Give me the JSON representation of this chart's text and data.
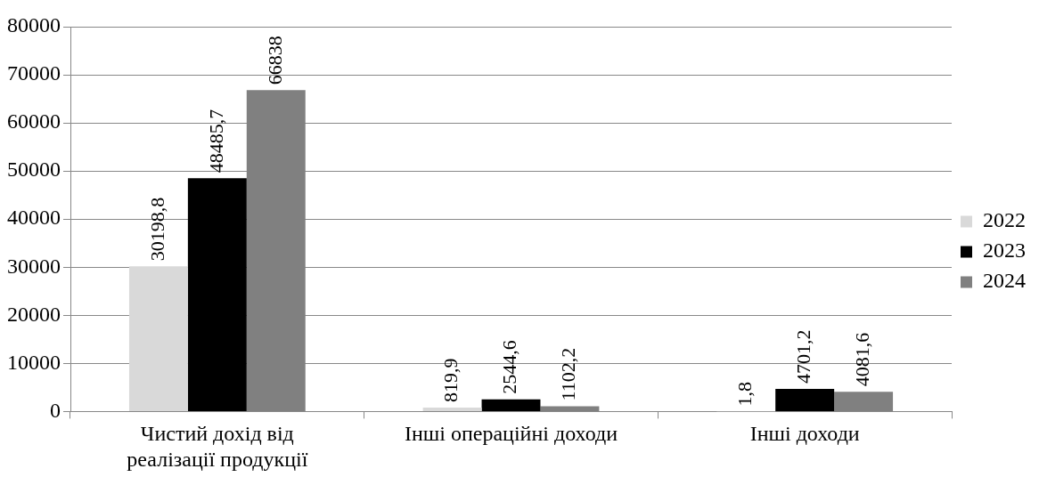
{
  "chart_data": {
    "type": "bar",
    "categories": [
      "Чистий дохід від реалізації продукції",
      "Інші операційні доходи",
      "Інші доходи"
    ],
    "series": [
      {
        "name": "2022",
        "color": "#d9d9d9",
        "values": [
          30198.8,
          819.9,
          1.8
        ],
        "value_labels": [
          "30198,8",
          "819,9",
          "1,8"
        ]
      },
      {
        "name": "2023",
        "color": "#000000",
        "values": [
          48485.7,
          2544.6,
          4701.2
        ],
        "value_labels": [
          "48485,7",
          "2544,6",
          "4701,2"
        ]
      },
      {
        "name": "2024",
        "color": "#808080",
        "values": [
          66838,
          1102.2,
          4081.6
        ],
        "value_labels": [
          "66838",
          "1102,2",
          "4081,6"
        ]
      }
    ],
    "ylim": [
      0,
      80000
    ],
    "yticks": [
      0,
      10000,
      20000,
      30000,
      40000,
      50000,
      60000,
      70000,
      80000
    ],
    "grid": "y",
    "legend": "right"
  }
}
